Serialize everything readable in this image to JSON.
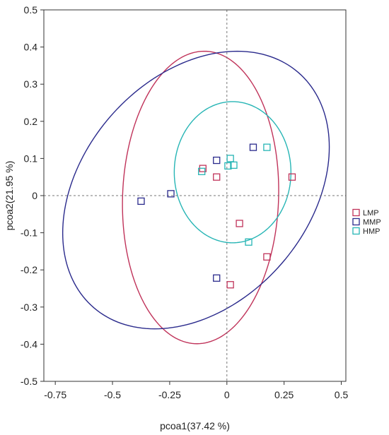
{
  "chart_data": {
    "type": "scatter",
    "title": "",
    "xlabel": "pcoa1(37.42 %)",
    "ylabel": "pcoa2(21.95 %)",
    "xlim": [
      -0.8,
      0.52
    ],
    "ylim": [
      -0.5,
      0.5
    ],
    "x_ticks": [
      -0.75,
      -0.5,
      -0.25,
      0,
      0.25,
      0.5
    ],
    "x_tick_labels": [
      "-0.75",
      "-0.5",
      "-0.25",
      "0",
      "0.25",
      "0.5"
    ],
    "y_ticks": [
      0.5,
      0.4,
      0.3,
      0.2,
      0.1,
      0,
      -0.1,
      -0.2,
      -0.3,
      -0.4,
      -0.5
    ],
    "y_tick_labels": [
      "0.5",
      "0.4",
      "0.3",
      "0.2",
      "0.1",
      "0",
      "-0.1",
      "-0.2",
      "-0.3",
      "-0.4",
      "-0.5"
    ],
    "zero_lines": true,
    "grid": false,
    "legend_position": "right",
    "series": [
      {
        "name": "LMP",
        "color": "#c0335a",
        "marker": "square-open",
        "points": [
          [
            -0.105,
            0.073
          ],
          [
            -0.045,
            0.05
          ],
          [
            0.285,
            0.05
          ],
          [
            0.055,
            -0.075
          ],
          [
            0.175,
            -0.165
          ],
          [
            0.015,
            -0.24
          ]
        ],
        "ellipse": {
          "cx": -0.115,
          "cy": -0.005,
          "rx": 0.395,
          "ry": 0.34,
          "angle_deg": 81
        }
      },
      {
        "name": "MMP",
        "color": "#2a2a8c",
        "marker": "square-open",
        "points": [
          [
            -0.045,
            0.095
          ],
          [
            0.115,
            0.13
          ],
          [
            -0.245,
            0.005
          ],
          [
            -0.375,
            -0.015
          ],
          [
            -0.045,
            -0.222
          ]
        ],
        "ellipse": {
          "cx": -0.135,
          "cy": 0.015,
          "rx": 0.6,
          "ry": 0.345,
          "angle_deg": 17
        }
      },
      {
        "name": "HMP",
        "color": "#27b5b5",
        "marker": "square-open",
        "points": [
          [
            -0.11,
            0.065
          ],
          [
            0.015,
            0.1
          ],
          [
            0.005,
            0.08
          ],
          [
            0.03,
            0.082
          ],
          [
            0.175,
            0.13
          ],
          [
            0.095,
            -0.125
          ]
        ],
        "ellipse": {
          "cx": 0.025,
          "cy": 0.063,
          "rx": 0.255,
          "ry": 0.19,
          "angle_deg": 0
        }
      }
    ]
  }
}
